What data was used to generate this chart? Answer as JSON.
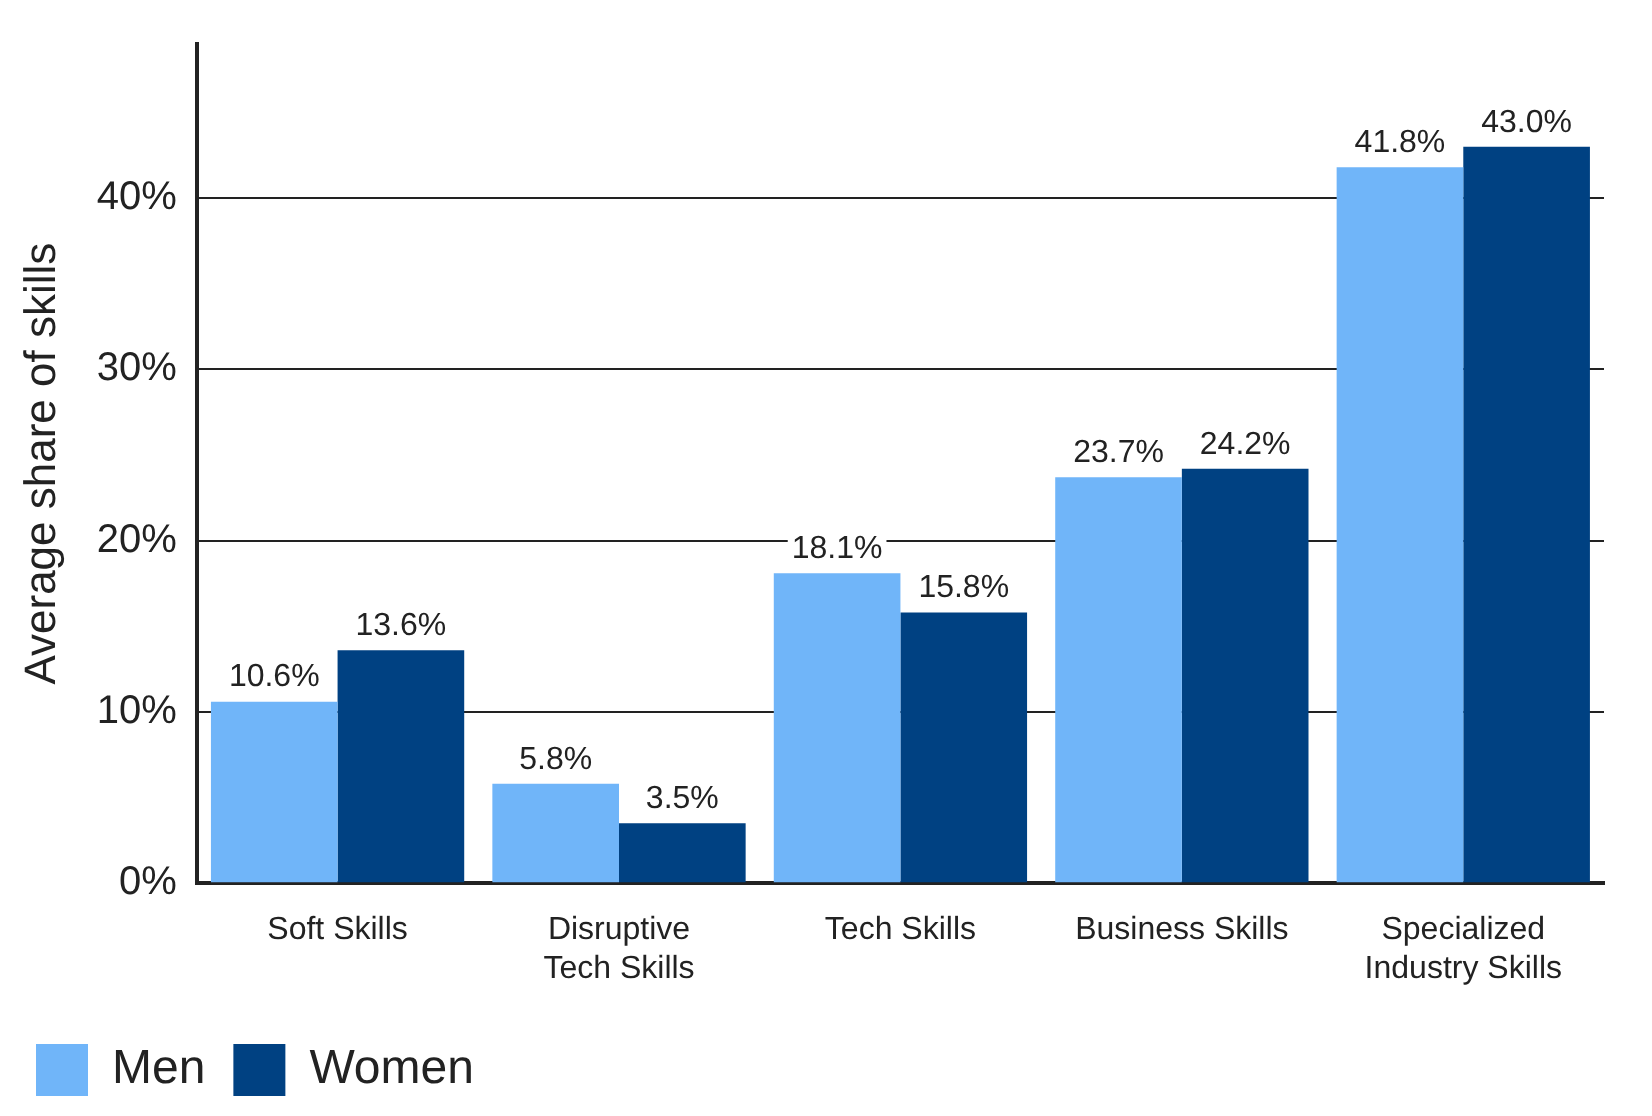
{
  "chart_data": {
    "type": "bar",
    "ylabel": "Average share of skills",
    "categories": [
      "Soft Skills",
      "Disruptive Tech Skills",
      "Tech Skills",
      "Business Skills",
      "Specialized Industry Skills"
    ],
    "series": [
      {
        "name": "Men",
        "color": "#70b5f9",
        "values": [
          10.6,
          5.8,
          18.1,
          23.7,
          41.8
        ],
        "value_labels": [
          "10.6%",
          "5.8%",
          "18.1%",
          "23.7%",
          "41.8%"
        ]
      },
      {
        "name": "Women",
        "color": "#004182",
        "values": [
          13.6,
          3.5,
          15.8,
          24.2,
          43.0
        ],
        "value_labels": [
          "13.6%",
          "3.5%",
          "15.8%",
          "24.2%",
          "43.0%"
        ]
      }
    ],
    "ylim": [
      0,
      49
    ],
    "yticks": [
      {
        "value": 0,
        "label": "0%"
      },
      {
        "value": 10,
        "label": "10%"
      },
      {
        "value": 20,
        "label": "20%"
      },
      {
        "value": 30,
        "label": "30%"
      },
      {
        "value": 40,
        "label": "40%"
      }
    ],
    "grid": "y",
    "legend": "bottom left"
  }
}
